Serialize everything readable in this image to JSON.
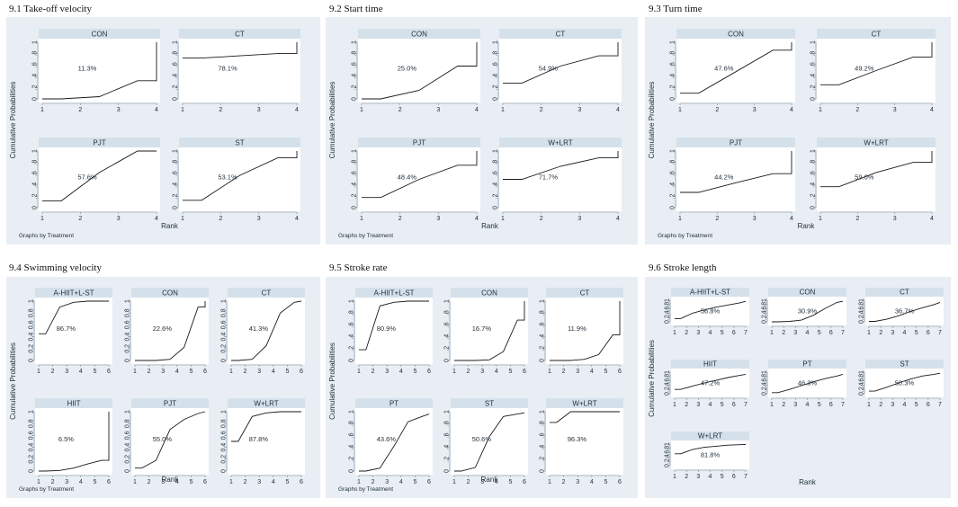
{
  "colors": {
    "panel_bg": "#e8eef3",
    "plot_bg": "#ffffff",
    "strip_bg": "#d5e1ea",
    "line": "#1a1a1a",
    "axis": "#7f8c96"
  },
  "chart_data": [
    {
      "type": "line",
      "title": "9.1 Take-off velocity",
      "xlabel": "Rank",
      "ylabel": "Cumulative Probabilities",
      "note": "Graphs by Treatment",
      "xlim": [
        1,
        4
      ],
      "ylim": [
        0,
        1
      ],
      "xticks": [
        1,
        2,
        3,
        4
      ],
      "yticks": [
        "0",
        ".2",
        ".4",
        ".6",
        ".8",
        "1"
      ],
      "columns": 2,
      "facets": [
        {
          "name": "CON",
          "sucra": "11.3%",
          "x": [
            1,
            1.5,
            2.5,
            3.5,
            4,
            4
          ],
          "y": [
            0.0,
            0.0,
            0.04,
            0.32,
            0.32,
            1.0
          ]
        },
        {
          "name": "CT",
          "sucra": "78.1%",
          "x": [
            1,
            1.5,
            2.5,
            3.5,
            4,
            4
          ],
          "y": [
            0.72,
            0.72,
            0.76,
            0.8,
            0.8,
            1.0
          ]
        },
        {
          "name": "PJT",
          "sucra": "57.6%",
          "x": [
            1,
            1.5,
            2.5,
            3.5,
            4,
            4
          ],
          "y": [
            0.12,
            0.12,
            0.62,
            1.0,
            1.0,
            1.0
          ]
        },
        {
          "name": "ST",
          "sucra": "53.1%",
          "x": [
            1,
            1.5,
            2.5,
            3.5,
            4,
            4
          ],
          "y": [
            0.13,
            0.13,
            0.57,
            0.88,
            0.88,
            1.0
          ]
        }
      ]
    },
    {
      "type": "line",
      "title": "9.2 Start time",
      "xlabel": "Rank",
      "ylabel": "Cumulative Probabilities",
      "note": "Graphs by Treatment",
      "xlim": [
        1,
        4
      ],
      "ylim": [
        0,
        1
      ],
      "xticks": [
        1,
        2,
        3,
        4
      ],
      "yticks": [
        "0",
        ".2",
        ".4",
        ".6",
        ".8",
        "1"
      ],
      "columns": 2,
      "facets": [
        {
          "name": "CON",
          "sucra": "25.0%",
          "x": [
            1,
            1.5,
            2.5,
            3.5,
            4,
            4
          ],
          "y": [
            0.0,
            0.0,
            0.15,
            0.58,
            0.58,
            1.0
          ]
        },
        {
          "name": "CT",
          "sucra": "54.9%",
          "x": [
            1,
            1.5,
            2.5,
            3.5,
            4,
            4
          ],
          "y": [
            0.28,
            0.28,
            0.58,
            0.76,
            0.76,
            1.0
          ]
        },
        {
          "name": "PJT",
          "sucra": "48.4%",
          "x": [
            1,
            1.5,
            2.5,
            3.5,
            4,
            4
          ],
          "y": [
            0.18,
            0.18,
            0.5,
            0.75,
            0.75,
            1.0
          ]
        },
        {
          "name": "W+LRT",
          "sucra": "71.7%",
          "x": [
            1,
            1.5,
            2.5,
            3.5,
            4,
            4
          ],
          "y": [
            0.5,
            0.5,
            0.73,
            0.88,
            0.88,
            1.0
          ]
        }
      ]
    },
    {
      "type": "line",
      "title": "9.3 Turn time",
      "xlabel": "Rank",
      "ylabel": "Cumulative Probabilities",
      "note": "Graphs by Treatment",
      "xlim": [
        1,
        4
      ],
      "ylim": [
        0,
        1
      ],
      "xticks": [
        1,
        2,
        3,
        4
      ],
      "yticks": [
        "0",
        ".2",
        ".4",
        ".6",
        ".8",
        "1"
      ],
      "columns": 2,
      "facets": [
        {
          "name": "CON",
          "sucra": "47.6%",
          "x": [
            1,
            1.5,
            2.5,
            3.5,
            4,
            4
          ],
          "y": [
            0.1,
            0.1,
            0.48,
            0.86,
            0.86,
            1.0
          ]
        },
        {
          "name": "CT",
          "sucra": "49.2%",
          "x": [
            1,
            1.5,
            2.5,
            3.5,
            4,
            4
          ],
          "y": [
            0.25,
            0.25,
            0.5,
            0.74,
            0.74,
            1.0
          ]
        },
        {
          "name": "PJT",
          "sucra": "44.2%",
          "x": [
            1,
            1.5,
            2.5,
            3.5,
            4,
            4
          ],
          "y": [
            0.27,
            0.27,
            0.44,
            0.6,
            0.6,
            1.0
          ]
        },
        {
          "name": "W+LRT",
          "sucra": "59.0%",
          "x": [
            1,
            1.5,
            2.5,
            3.5,
            4,
            4
          ],
          "y": [
            0.37,
            0.37,
            0.62,
            0.8,
            0.8,
            1.0
          ]
        }
      ]
    },
    {
      "type": "line",
      "title": "9.4 Swimming velocity",
      "xlabel": "Rank",
      "ylabel": "Cumulative Probabilities",
      "note": "Graphs by Treatment",
      "xlim": [
        1,
        6
      ],
      "ylim": [
        0,
        1
      ],
      "xticks": [
        1,
        2,
        3,
        4,
        5,
        6
      ],
      "yticks": [
        "0",
        "0.2",
        "0.4",
        "0.6",
        "0.8",
        "1"
      ],
      "columns": 3,
      "facets": [
        {
          "name": "A-HIIT+L-ST",
          "sucra": "86.7%",
          "x": [
            1,
            1.5,
            2.5,
            3.5,
            4.5,
            5.5,
            6
          ],
          "y": [
            0.45,
            0.45,
            0.9,
            0.98,
            1.0,
            1.0,
            1.0
          ]
        },
        {
          "name": "CON",
          "sucra": "22.6%",
          "x": [
            1,
            1.5,
            2.5,
            3.5,
            4.5,
            5.5,
            6,
            6
          ],
          "y": [
            0.0,
            0.0,
            0.0,
            0.02,
            0.22,
            0.9,
            0.9,
            1.0
          ]
        },
        {
          "name": "CT",
          "sucra": "41.3%",
          "x": [
            1,
            1.5,
            2.5,
            3.5,
            4.5,
            5.5,
            6
          ],
          "y": [
            0.0,
            0.0,
            0.02,
            0.25,
            0.8,
            0.98,
            1.0
          ]
        },
        {
          "name": "HIIT",
          "sucra": "6.5%",
          "x": [
            1,
            1.5,
            2.5,
            3.5,
            4.5,
            5.5,
            6,
            6
          ],
          "y": [
            0.0,
            0.0,
            0.01,
            0.05,
            0.12,
            0.18,
            0.18,
            1.0
          ]
        },
        {
          "name": "PJT",
          "sucra": "55.0%",
          "x": [
            1,
            1.5,
            2.5,
            3.5,
            4.5,
            5.5,
            6
          ],
          "y": [
            0.05,
            0.05,
            0.18,
            0.7,
            0.87,
            0.97,
            1.0
          ]
        },
        {
          "name": "W+LRT",
          "sucra": "87.8%",
          "x": [
            1,
            1.5,
            2.5,
            3.5,
            4.5,
            5.5,
            6
          ],
          "y": [
            0.5,
            0.5,
            0.92,
            0.98,
            1.0,
            1.0,
            1.0
          ]
        }
      ]
    },
    {
      "type": "line",
      "title": "9.5 Stroke rate",
      "xlabel": "Rank",
      "ylabel": "Cumulative Probabilities",
      "note": "Graphs by Treatment",
      "xlim": [
        1,
        6
      ],
      "ylim": [
        0,
        1
      ],
      "xticks": [
        1,
        2,
        3,
        4,
        5,
        6
      ],
      "yticks": [
        "0",
        ".2",
        ".4",
        ".6",
        ".8",
        "1"
      ],
      "columns": 3,
      "facets": [
        {
          "name": "A-HIIT+L-ST",
          "sucra": "80.9%",
          "x": [
            1,
            1.5,
            2.5,
            3.5,
            4.5,
            5.5,
            6
          ],
          "y": [
            0.18,
            0.18,
            0.92,
            0.98,
            1.0,
            1.0,
            1.0
          ]
        },
        {
          "name": "CON",
          "sucra": "16.7%",
          "x": [
            1,
            1.5,
            2.5,
            3.5,
            4.5,
            5.5,
            6,
            6
          ],
          "y": [
            0.0,
            0.0,
            0.0,
            0.01,
            0.15,
            0.68,
            0.68,
            1.0
          ]
        },
        {
          "name": "CT",
          "sucra": "11.9%",
          "x": [
            1,
            1.5,
            2.5,
            3.5,
            4.5,
            5.5,
            6,
            6
          ],
          "y": [
            0.0,
            0.0,
            0.0,
            0.02,
            0.1,
            0.43,
            0.43,
            1.0
          ]
        },
        {
          "name": "PT",
          "sucra": "43.6%",
          "x": [
            1,
            1.5,
            2.5,
            3.5,
            4.5,
            5.5,
            6
          ],
          "y": [
            0.0,
            0.0,
            0.05,
            0.42,
            0.83,
            0.92,
            0.96
          ]
        },
        {
          "name": "ST",
          "sucra": "50.6%",
          "x": [
            1,
            1.5,
            2.5,
            3.5,
            4.5,
            5.5,
            6
          ],
          "y": [
            0.0,
            0.0,
            0.06,
            0.58,
            0.92,
            0.96,
            0.98
          ]
        },
        {
          "name": "W+LRT",
          "sucra": "96.3%",
          "x": [
            1,
            1.5,
            2.5,
            3.5,
            4.5,
            5.5,
            6
          ],
          "y": [
            0.82,
            0.82,
            1.0,
            1.0,
            1.0,
            1.0,
            1.0
          ]
        }
      ]
    },
    {
      "type": "line",
      "title": "9.6 Stroke length",
      "xlabel": "Rank",
      "ylabel": "Cumulative Probabilities",
      "xlim": [
        1,
        7
      ],
      "ylim": [
        0,
        1
      ],
      "xticks": [
        1,
        2,
        3,
        4,
        5,
        6,
        7
      ],
      "yticks": [
        "0",
        ".2",
        ".4",
        ".6",
        ".8",
        "1"
      ],
      "columns": 3,
      "facets": [
        {
          "name": "A-HIIT+L-ST",
          "sucra": "56.8%",
          "x": [
            1,
            1.5,
            2.5,
            3.5,
            4.5,
            5.5,
            6.5,
            7
          ],
          "y": [
            0.15,
            0.15,
            0.4,
            0.55,
            0.68,
            0.78,
            0.88,
            0.95
          ]
        },
        {
          "name": "CON",
          "sucra": "30.9%",
          "x": [
            1,
            1.5,
            2.5,
            3.5,
            4.5,
            5.5,
            6.5,
            7
          ],
          "y": [
            0.0,
            0.0,
            0.02,
            0.08,
            0.3,
            0.62,
            0.9,
            0.95
          ]
        },
        {
          "name": "CT",
          "sucra": "36.7%",
          "x": [
            1,
            1.5,
            2.5,
            3.5,
            4.5,
            5.5,
            6.5,
            7
          ],
          "y": [
            0.02,
            0.02,
            0.12,
            0.28,
            0.48,
            0.65,
            0.8,
            0.9
          ]
        },
        {
          "name": "HIIT",
          "sucra": "47.2%",
          "x": [
            1,
            1.5,
            2.5,
            3.5,
            4.5,
            5.5,
            6.5,
            7
          ],
          "y": [
            0.2,
            0.2,
            0.35,
            0.5,
            0.62,
            0.75,
            0.85,
            0.9
          ]
        },
        {
          "name": "PT",
          "sucra": "46.3%",
          "x": [
            1,
            1.5,
            2.5,
            3.5,
            4.5,
            5.5,
            6.5,
            7
          ],
          "y": [
            0.05,
            0.05,
            0.2,
            0.38,
            0.55,
            0.7,
            0.82,
            0.9
          ]
        },
        {
          "name": "ST",
          "sucra": "50.3%",
          "x": [
            1,
            1.5,
            2.5,
            3.5,
            4.5,
            5.5,
            6.5,
            7
          ],
          "y": [
            0.12,
            0.12,
            0.3,
            0.5,
            0.68,
            0.82,
            0.9,
            0.95
          ]
        },
        {
          "name": "W+LRT",
          "sucra": "81.8%",
          "x": [
            1,
            1.5,
            2.5,
            3.5,
            4.5,
            5.5,
            6.5,
            7
          ],
          "y": [
            0.55,
            0.55,
            0.75,
            0.85,
            0.9,
            0.95,
            0.97,
            0.98
          ]
        }
      ]
    }
  ]
}
